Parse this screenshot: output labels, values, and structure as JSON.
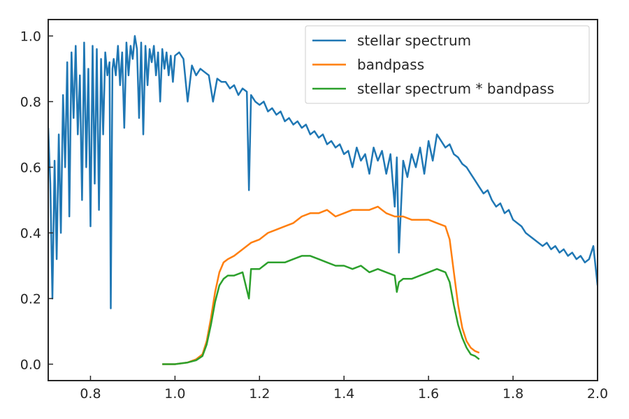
{
  "chart_data": {
    "type": "line",
    "title": "",
    "xlabel": "",
    "ylabel": "",
    "xlim": [
      0.7,
      2.0
    ],
    "ylim": [
      -0.05,
      1.05
    ],
    "xticks": [
      0.8,
      1.0,
      1.2,
      1.4,
      1.6,
      1.8,
      2.0
    ],
    "xtick_labels": [
      "0.8",
      "1.0",
      "1.2",
      "1.4",
      "1.6",
      "1.8",
      "2.0"
    ],
    "yticks": [
      0.0,
      0.2,
      0.4,
      0.6,
      0.8,
      1.0
    ],
    "ytick_labels": [
      "0.0",
      "0.2",
      "0.4",
      "0.6",
      "0.8",
      "1.0"
    ],
    "grid": false,
    "legend_position": "top-right",
    "series": [
      {
        "name": "stellar spectrum",
        "color": "#1f77b4",
        "x": [
          0.7,
          0.705,
          0.71,
          0.715,
          0.72,
          0.725,
          0.73,
          0.735,
          0.74,
          0.745,
          0.75,
          0.755,
          0.76,
          0.765,
          0.77,
          0.775,
          0.78,
          0.785,
          0.79,
          0.795,
          0.8,
          0.805,
          0.81,
          0.815,
          0.82,
          0.825,
          0.83,
          0.835,
          0.84,
          0.845,
          0.848,
          0.852,
          0.855,
          0.86,
          0.865,
          0.87,
          0.875,
          0.88,
          0.885,
          0.89,
          0.895,
          0.9,
          0.905,
          0.91,
          0.915,
          0.92,
          0.925,
          0.93,
          0.935,
          0.94,
          0.945,
          0.95,
          0.955,
          0.96,
          0.965,
          0.97,
          0.975,
          0.98,
          0.985,
          0.99,
          0.995,
          1.0,
          1.01,
          1.02,
          1.03,
          1.04,
          1.05,
          1.06,
          1.07,
          1.08,
          1.09,
          1.1,
          1.11,
          1.12,
          1.13,
          1.14,
          1.15,
          1.16,
          1.17,
          1.175,
          1.18,
          1.19,
          1.2,
          1.21,
          1.22,
          1.23,
          1.24,
          1.25,
          1.26,
          1.27,
          1.28,
          1.29,
          1.3,
          1.31,
          1.32,
          1.33,
          1.34,
          1.35,
          1.36,
          1.37,
          1.38,
          1.39,
          1.4,
          1.41,
          1.42,
          1.43,
          1.44,
          1.45,
          1.46,
          1.47,
          1.48,
          1.49,
          1.5,
          1.51,
          1.52,
          1.525,
          1.53,
          1.54,
          1.55,
          1.56,
          1.57,
          1.58,
          1.59,
          1.6,
          1.61,
          1.62,
          1.63,
          1.64,
          1.65,
          1.66,
          1.67,
          1.68,
          1.69,
          1.7,
          1.71,
          1.72,
          1.73,
          1.74,
          1.75,
          1.76,
          1.77,
          1.78,
          1.79,
          1.8,
          1.81,
          1.82,
          1.83,
          1.84,
          1.85,
          1.86,
          1.87,
          1.88,
          1.89,
          1.9,
          1.91,
          1.92,
          1.93,
          1.94,
          1.95,
          1.96,
          1.97,
          1.98,
          1.99,
          2.0
        ],
        "y": [
          0.72,
          0.55,
          0.2,
          0.62,
          0.32,
          0.7,
          0.4,
          0.82,
          0.6,
          0.92,
          0.45,
          0.95,
          0.75,
          0.97,
          0.7,
          0.88,
          0.5,
          0.98,
          0.6,
          0.9,
          0.42,
          0.97,
          0.55,
          0.96,
          0.47,
          0.93,
          0.7,
          0.95,
          0.88,
          0.92,
          0.17,
          0.9,
          0.93,
          0.88,
          0.97,
          0.85,
          0.95,
          0.72,
          0.98,
          0.88,
          0.97,
          0.93,
          1.0,
          0.96,
          0.75,
          0.98,
          0.7,
          0.97,
          0.85,
          0.96,
          0.92,
          0.97,
          0.88,
          0.95,
          0.8,
          0.96,
          0.9,
          0.95,
          0.88,
          0.94,
          0.86,
          0.94,
          0.95,
          0.93,
          0.8,
          0.91,
          0.88,
          0.9,
          0.89,
          0.88,
          0.8,
          0.87,
          0.86,
          0.86,
          0.84,
          0.85,
          0.82,
          0.84,
          0.83,
          0.53,
          0.82,
          0.8,
          0.79,
          0.8,
          0.77,
          0.78,
          0.76,
          0.77,
          0.74,
          0.75,
          0.73,
          0.74,
          0.72,
          0.73,
          0.7,
          0.71,
          0.69,
          0.7,
          0.67,
          0.68,
          0.66,
          0.67,
          0.64,
          0.65,
          0.6,
          0.66,
          0.62,
          0.64,
          0.58,
          0.66,
          0.62,
          0.65,
          0.58,
          0.64,
          0.48,
          0.63,
          0.34,
          0.62,
          0.57,
          0.64,
          0.6,
          0.66,
          0.58,
          0.68,
          0.62,
          0.7,
          0.68,
          0.66,
          0.67,
          0.64,
          0.63,
          0.61,
          0.6,
          0.58,
          0.56,
          0.54,
          0.52,
          0.53,
          0.5,
          0.48,
          0.49,
          0.46,
          0.47,
          0.44,
          0.43,
          0.42,
          0.4,
          0.39,
          0.38,
          0.37,
          0.36,
          0.37,
          0.35,
          0.36,
          0.34,
          0.35,
          0.33,
          0.34,
          0.32,
          0.33,
          0.31,
          0.32,
          0.36,
          0.24
        ]
      },
      {
        "name": "bandpass",
        "color": "#ff7f0e",
        "x": [
          0.97,
          1.0,
          1.03,
          1.05,
          1.065,
          1.075,
          1.085,
          1.095,
          1.105,
          1.115,
          1.125,
          1.14,
          1.16,
          1.18,
          1.2,
          1.22,
          1.24,
          1.26,
          1.28,
          1.3,
          1.32,
          1.34,
          1.36,
          1.38,
          1.4,
          1.42,
          1.44,
          1.46,
          1.48,
          1.5,
          1.52,
          1.54,
          1.56,
          1.58,
          1.6,
          1.62,
          1.64,
          1.65,
          1.66,
          1.67,
          1.68,
          1.69,
          1.7,
          1.71,
          1.72
        ],
        "y": [
          0.0,
          0.0,
          0.005,
          0.015,
          0.03,
          0.07,
          0.14,
          0.22,
          0.28,
          0.31,
          0.32,
          0.33,
          0.35,
          0.37,
          0.38,
          0.4,
          0.41,
          0.42,
          0.43,
          0.45,
          0.46,
          0.46,
          0.47,
          0.45,
          0.46,
          0.47,
          0.47,
          0.47,
          0.48,
          0.46,
          0.45,
          0.45,
          0.44,
          0.44,
          0.44,
          0.43,
          0.42,
          0.38,
          0.28,
          0.18,
          0.11,
          0.07,
          0.05,
          0.04,
          0.035
        ]
      },
      {
        "name": "stellar spectrum * bandpass",
        "color": "#2ca02c",
        "x": [
          0.97,
          1.0,
          1.03,
          1.05,
          1.065,
          1.075,
          1.085,
          1.095,
          1.105,
          1.115,
          1.125,
          1.14,
          1.16,
          1.175,
          1.18,
          1.2,
          1.22,
          1.24,
          1.26,
          1.28,
          1.3,
          1.32,
          1.34,
          1.36,
          1.38,
          1.4,
          1.42,
          1.44,
          1.46,
          1.48,
          1.5,
          1.52,
          1.525,
          1.53,
          1.54,
          1.56,
          1.58,
          1.6,
          1.62,
          1.64,
          1.65,
          1.66,
          1.67,
          1.68,
          1.69,
          1.7,
          1.71,
          1.72
        ],
        "y": [
          0.0,
          0.0,
          0.005,
          0.012,
          0.025,
          0.06,
          0.12,
          0.19,
          0.24,
          0.26,
          0.27,
          0.27,
          0.28,
          0.2,
          0.29,
          0.29,
          0.31,
          0.31,
          0.31,
          0.32,
          0.33,
          0.33,
          0.32,
          0.31,
          0.3,
          0.3,
          0.29,
          0.3,
          0.28,
          0.29,
          0.28,
          0.27,
          0.22,
          0.25,
          0.26,
          0.26,
          0.27,
          0.28,
          0.29,
          0.28,
          0.25,
          0.18,
          0.12,
          0.08,
          0.05,
          0.03,
          0.025,
          0.015
        ]
      }
    ]
  }
}
